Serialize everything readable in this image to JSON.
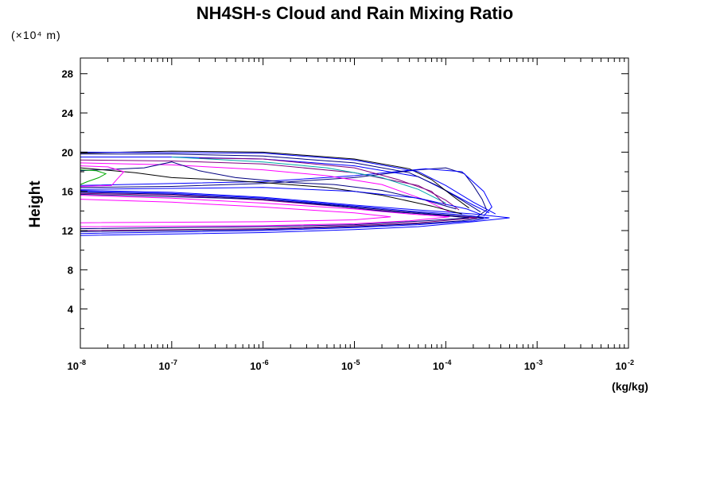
{
  "chart_data": {
    "type": "line",
    "title": "NH4SH-s Cloud and Rain Mixing Ratio",
    "ylabel": "Height",
    "y_scale_label": "(×10⁴ m)",
    "x_units": "(kg/kg)",
    "x_scale": "log",
    "xlim": [
      1e-08,
      0.01
    ],
    "ylim": [
      0,
      29.6
    ],
    "x_ticks": [
      {
        "base": "10",
        "exp": "-8",
        "value": 1e-08
      },
      {
        "base": "10",
        "exp": "-7",
        "value": 1e-07
      },
      {
        "base": "10",
        "exp": "-6",
        "value": 1e-06
      },
      {
        "base": "10",
        "exp": "-5",
        "value": 1e-05
      },
      {
        "base": "10",
        "exp": "-4",
        "value": 0.0001
      },
      {
        "base": "10",
        "exp": "-3",
        "value": 0.001
      },
      {
        "base": "10",
        "exp": "-2",
        "value": 0.01
      }
    ],
    "y_ticks": [
      "4",
      "8",
      "12",
      "16",
      "20",
      "24",
      "28"
    ],
    "y_tick_values": [
      4,
      8,
      12,
      16,
      20,
      24,
      28
    ],
    "series": [
      {
        "color": "#0000ff",
        "points": [
          [
            1e-08,
            11.5
          ],
          [
            1e-06,
            11.8
          ],
          [
            1e-05,
            12.1
          ],
          [
            5e-05,
            12.4
          ],
          [
            0.0002,
            12.9
          ],
          [
            0.0005,
            13.3
          ],
          [
            0.0002,
            13.7
          ],
          [
            5e-05,
            14.1
          ],
          [
            1e-05,
            14.6
          ],
          [
            1e-06,
            15.4
          ],
          [
            1e-07,
            15.9
          ],
          [
            1e-08,
            16.1
          ]
        ]
      },
      {
        "color": "#0000ff",
        "points": [
          [
            1e-08,
            11.7
          ],
          [
            1e-06,
            12.0
          ],
          [
            1e-05,
            12.3
          ],
          [
            5e-05,
            12.6
          ],
          [
            0.0002,
            13.0
          ],
          [
            0.0003,
            13.3
          ],
          [
            0.00015,
            13.6
          ],
          [
            4e-05,
            14.0
          ],
          [
            1e-05,
            14.5
          ],
          [
            1e-06,
            15.3
          ],
          [
            1e-07,
            15.8
          ],
          [
            1e-08,
            16.0
          ]
        ]
      },
      {
        "color": "#000080",
        "points": [
          [
            1e-08,
            11.9
          ],
          [
            1e-06,
            12.1
          ],
          [
            1e-05,
            12.4
          ],
          [
            5e-05,
            12.7
          ],
          [
            0.00015,
            13.0
          ],
          [
            0.00026,
            13.3
          ],
          [
            0.0001,
            13.6
          ],
          [
            3e-05,
            14.0
          ],
          [
            8e-06,
            14.5
          ],
          [
            1e-06,
            15.2
          ],
          [
            1e-07,
            15.7
          ],
          [
            1e-08,
            15.9
          ]
        ]
      },
      {
        "color": "#800080",
        "points": [
          [
            1e-08,
            12.0
          ],
          [
            1e-06,
            12.2
          ],
          [
            1e-05,
            12.5
          ],
          [
            5e-05,
            12.8
          ],
          [
            0.00022,
            13.3
          ],
          [
            0.0001,
            13.5
          ],
          [
            3e-05,
            13.9
          ],
          [
            6e-06,
            14.5
          ],
          [
            1e-06,
            15.1
          ],
          [
            1e-07,
            15.6
          ],
          [
            1e-08,
            15.8
          ]
        ]
      },
      {
        "color": "#ff00ff",
        "points": [
          [
            1e-08,
            12.4
          ],
          [
            1e-06,
            12.5
          ],
          [
            1e-05,
            12.7
          ],
          [
            4e-05,
            13.0
          ],
          [
            0.00011,
            13.4
          ],
          [
            4e-05,
            13.7
          ],
          [
            1e-05,
            14.2
          ],
          [
            1e-06,
            14.8
          ],
          [
            1e-07,
            15.3
          ],
          [
            1e-08,
            15.6
          ]
        ]
      },
      {
        "color": "#ff00ff",
        "points": [
          [
            1e-08,
            12.8
          ],
          [
            1e-06,
            12.9
          ],
          [
            1e-05,
            13.1
          ],
          [
            2.5e-05,
            13.4
          ],
          [
            1e-05,
            13.8
          ],
          [
            1e-06,
            14.4
          ],
          [
            1e-07,
            14.9
          ],
          [
            1e-08,
            15.2
          ]
        ]
      },
      {
        "color": "#000080",
        "points": [
          [
            1e-08,
            12.2
          ],
          [
            1e-06,
            12.4
          ],
          [
            1e-05,
            12.6
          ],
          [
            6e-05,
            13.0
          ],
          [
            0.00018,
            13.3
          ],
          [
            8e-05,
            13.6
          ],
          [
            2e-05,
            14.0
          ],
          [
            5e-06,
            14.6
          ],
          [
            1e-06,
            15.2
          ],
          [
            1e-08,
            15.7
          ]
        ]
      },
      {
        "color": "#000080",
        "points": [
          [
            1e-08,
            16.4
          ],
          [
            1e-07,
            16.5
          ],
          [
            1e-06,
            16.8
          ],
          [
            1e-05,
            17.4
          ],
          [
            5e-05,
            18.2
          ],
          [
            0.0001,
            18.4
          ],
          [
            0.00016,
            17.8
          ],
          [
            0.0002,
            16.6
          ],
          [
            0.00025,
            15.2
          ],
          [
            0.00028,
            14.1
          ],
          [
            0.00022,
            13.4
          ]
        ]
      },
      {
        "color": "#0000ff",
        "points": [
          [
            1e-08,
            16.6
          ],
          [
            1e-06,
            17.0
          ],
          [
            1e-05,
            17.6
          ],
          [
            6e-05,
            18.3
          ],
          [
            0.00015,
            18.0
          ],
          [
            0.00026,
            16.0
          ],
          [
            0.00032,
            14.4
          ],
          [
            0.00026,
            13.5
          ]
        ]
      },
      {
        "color": "#0000ff",
        "points": [
          [
            1e-08,
            19.5
          ],
          [
            1e-07,
            19.5
          ],
          [
            1e-06,
            19.3
          ],
          [
            1e-05,
            18.6
          ],
          [
            5e-05,
            17.5
          ],
          [
            0.0001,
            16.1
          ],
          [
            0.0002,
            14.6
          ],
          [
            0.0003,
            13.8
          ]
        ]
      },
      {
        "color": "#000080",
        "points": [
          [
            1e-08,
            19.8
          ],
          [
            1e-07,
            19.8
          ],
          [
            1e-06,
            19.6
          ],
          [
            1e-05,
            18.9
          ],
          [
            4e-05,
            17.9
          ],
          [
            8e-05,
            16.6
          ],
          [
            0.00015,
            15.1
          ],
          [
            0.00024,
            13.9
          ]
        ]
      },
      {
        "color": "#800080",
        "points": [
          [
            1e-08,
            19.2
          ],
          [
            1e-07,
            19.1
          ],
          [
            1e-06,
            18.8
          ],
          [
            1e-05,
            17.9
          ],
          [
            5e-05,
            16.6
          ],
          [
            0.0001,
            15.1
          ],
          [
            0.00014,
            14.1
          ]
        ]
      },
      {
        "color": "#ff00ff",
        "points": [
          [
            1e-08,
            18.9
          ],
          [
            1e-07,
            18.7
          ],
          [
            1e-06,
            18.2
          ],
          [
            5e-06,
            17.6
          ],
          [
            2e-05,
            16.7
          ],
          [
            6e-05,
            15.1
          ],
          [
            0.00011,
            13.9
          ]
        ]
      },
      {
        "color": "#00aaaa",
        "points": [
          [
            1e-07,
            19.5
          ],
          [
            1e-06,
            19.0
          ],
          [
            5e-06,
            18.4
          ],
          [
            2e-05,
            17.4
          ],
          [
            5e-05,
            16.2
          ],
          [
            0.0001,
            14.8
          ]
        ]
      },
      {
        "color": "#000000",
        "points": [
          [
            1e-08,
            19.9
          ],
          [
            1e-07,
            20.1
          ],
          [
            1e-06,
            20.0
          ],
          [
            1e-05,
            19.3
          ],
          [
            4e-05,
            18.3
          ],
          [
            7e-05,
            17.2
          ],
          [
            0.00012,
            15.5
          ],
          [
            0.00018,
            14.3
          ]
        ]
      },
      {
        "color": "#000080",
        "points": [
          [
            1e-08,
            18.1
          ],
          [
            5e-08,
            18.4
          ],
          [
            1e-07,
            19.0
          ],
          [
            2e-07,
            18.1
          ],
          [
            5e-07,
            17.4
          ],
          [
            2e-06,
            16.9
          ],
          [
            6e-06,
            16.7
          ],
          [
            2e-05,
            16.1
          ],
          [
            6e-05,
            15.1
          ],
          [
            0.00013,
            14.2
          ]
        ]
      },
      {
        "color": "#000000",
        "points": [
          [
            1e-08,
            18.4
          ],
          [
            4e-08,
            17.9
          ],
          [
            1e-07,
            17.4
          ],
          [
            3e-07,
            17.2
          ],
          [
            1e-06,
            16.9
          ],
          [
            5e-06,
            16.4
          ],
          [
            2e-05,
            15.6
          ],
          [
            7e-05,
            14.5
          ],
          [
            0.00015,
            13.7
          ]
        ]
      },
      {
        "color": "#0000ff",
        "points": [
          [
            1e-08,
            16.2
          ],
          [
            1e-07,
            16.3
          ],
          [
            1e-06,
            16.4
          ],
          [
            1e-05,
            16.0
          ],
          [
            5e-05,
            15.3
          ],
          [
            0.00017,
            14.2
          ],
          [
            0.00025,
            13.6
          ]
        ]
      },
      {
        "color": "#00aa00",
        "points": [
          [
            1e-08,
            16.7
          ],
          [
            1.2e-08,
            17.0
          ],
          [
            1.6e-08,
            17.4
          ],
          [
            1.9e-08,
            17.8
          ],
          [
            1.5e-08,
            18.1
          ],
          [
            1e-08,
            18.2
          ]
        ]
      },
      {
        "color": "#ff00ff",
        "points": [
          [
            1e-08,
            18.6
          ],
          [
            2e-08,
            18.5
          ],
          [
            3e-08,
            18.0
          ],
          [
            2.5e-08,
            17.2
          ],
          [
            2.2e-08,
            16.6
          ],
          [
            1e-08,
            16.5
          ]
        ]
      },
      {
        "color": "#800080",
        "points": [
          [
            2e-07,
            19.4
          ],
          [
            1e-06,
            19.3
          ],
          [
            1e-05,
            18.4
          ],
          [
            3e-05,
            17.2
          ],
          [
            7e-05,
            16.0
          ],
          [
            0.0001,
            14.6
          ]
        ]
      },
      {
        "color": "#0000ff",
        "points": [
          [
            1e-08,
            20.0
          ],
          [
            1e-06,
            19.9
          ],
          [
            1e-05,
            19.2
          ],
          [
            5e-05,
            18.0
          ],
          [
            0.0001,
            16.6
          ],
          [
            0.0002,
            14.9
          ],
          [
            0.00035,
            13.7
          ]
        ]
      }
    ]
  }
}
